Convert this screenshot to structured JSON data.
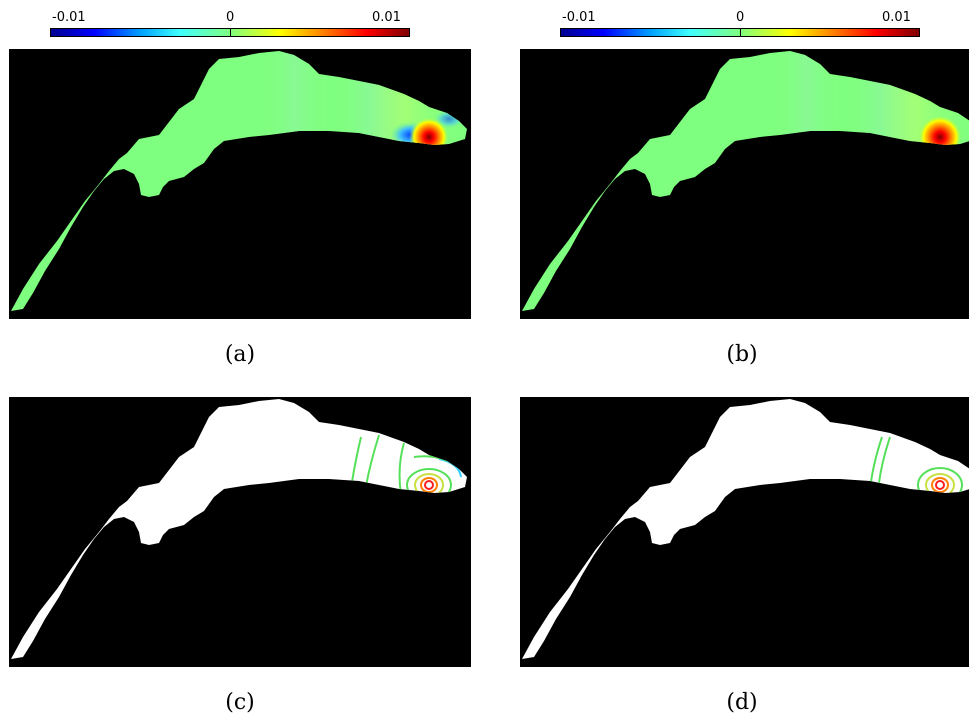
{
  "colorbar": {
    "tick_min": "-0.01",
    "tick_mid": "0",
    "tick_max": "0.01"
  },
  "panels": {
    "a": {
      "caption": "(a)"
    },
    "b": {
      "caption": "(b)"
    },
    "c": {
      "caption": "(c)"
    },
    "d": {
      "caption": "(d)"
    }
  },
  "colors": {
    "background": "#000000",
    "field_base": "#7fff7f",
    "mask_fill": "#ffffff",
    "hotspot_core": "#800000",
    "contour_green": "#55e05a",
    "contour_cyan": "#2fd0ff",
    "contour_red": "#ff2020"
  }
}
